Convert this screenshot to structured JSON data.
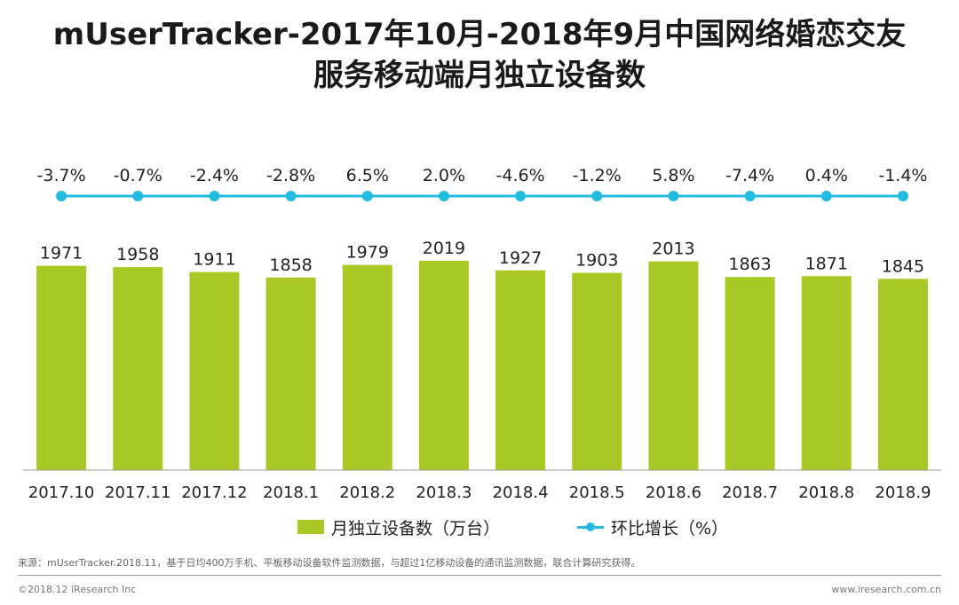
{
  "title": {
    "line1": "mUserTracker-2017年10月-2018年9月中国网络婚恋交友",
    "line2": "服务移动端月独立设备数"
  },
  "colors": {
    "bar": "#a8c924",
    "line": "#22bce0",
    "axis": "#999999"
  },
  "chart_data": {
    "type": "bar",
    "title": "mUserTracker-2017年10月-2018年9月中国网络婚恋交友服务移动端月独立设备数",
    "categories": [
      "2017.10",
      "2017.11",
      "2017.12",
      "2018.1",
      "2018.2",
      "2018.3",
      "2018.4",
      "2018.5",
      "2018.6",
      "2018.7",
      "2018.8",
      "2018.9"
    ],
    "series": [
      {
        "name": "月独立设备数（万台）",
        "type": "bar",
        "values": [
          1971,
          1958,
          1911,
          1858,
          1979,
          2019,
          1927,
          1903,
          2013,
          1863,
          1871,
          1845
        ]
      },
      {
        "name": "环比增长（%）",
        "type": "line",
        "values": [
          -3.7,
          -0.7,
          -2.4,
          -2.8,
          6.5,
          2.0,
          -4.6,
          -1.2,
          5.8,
          -7.4,
          0.4,
          -1.4
        ],
        "labels": [
          "-3.7%",
          "-0.7%",
          "-2.4%",
          "-2.8%",
          "6.5%",
          "2.0%",
          "-4.6%",
          "-1.2%",
          "5.8%",
          "-7.4%",
          "0.4%",
          "-1.4%"
        ]
      }
    ],
    "xlabel": "",
    "ylabel": "",
    "ylim": [
      0,
      2019
    ],
    "grid": false,
    "legend": "bottom-center"
  },
  "legend": {
    "bar_label": "月独立设备数（万台）",
    "line_label": "环比增长（%）"
  },
  "footnote": "来源：mUserTracker.2018.11，基于日均400万手机、平板移动设备软件监测数据，与超过1亿移动设备的通讯监测数据，联合计算研究获得。",
  "footer": {
    "copyright": "©2018.12 iResearch Inc",
    "website": "www.iresearch.com.cn"
  }
}
